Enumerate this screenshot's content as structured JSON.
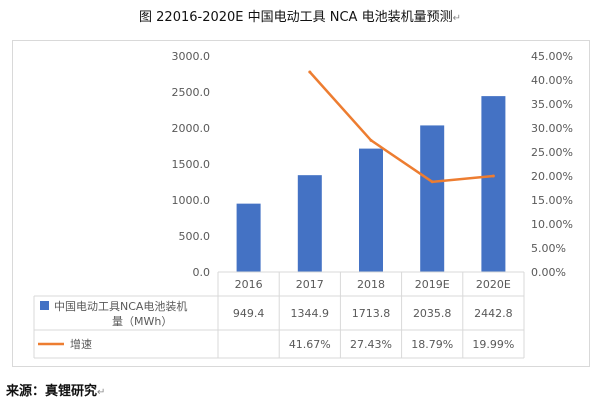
{
  "title": "图 22016-2020E  中国电动工具 NCA 电池装机量预测",
  "return_mark": "↵",
  "source": "来源：真锂研究",
  "colors": {
    "bar": "#4472C4",
    "line": "#ED7D31",
    "grid": "#d9d9d9",
    "text": "#595959"
  },
  "chart_data": {
    "type": "bar",
    "categories": [
      "2016",
      "2017",
      "2018",
      "2019E",
      "2020E"
    ],
    "series": [
      {
        "name": "中国电动工具NCA电池装机量（MWh）",
        "type": "bar",
        "axis": "left",
        "values": [
          949.4,
          1344.9,
          1713.8,
          2035.8,
          2442.8
        ],
        "labels": [
          "949.4",
          "1344.9",
          "1713.8",
          "2035.8",
          "2442.8"
        ]
      },
      {
        "name": "增速",
        "type": "line",
        "axis": "right",
        "values": [
          null,
          41.67,
          27.43,
          18.79,
          19.99
        ],
        "labels": [
          "",
          "41.67%",
          "27.43%",
          "18.79%",
          "19.99%"
        ]
      }
    ],
    "ylim": [
      0,
      3000
    ],
    "yticks": [
      "0.0",
      "500.0",
      "1000.0",
      "1500.0",
      "2000.0",
      "2500.0",
      "3000.0"
    ],
    "y2lim": [
      0,
      45
    ],
    "y2ticks": [
      "0.00%",
      "5.00%",
      "10.00%",
      "15.00%",
      "20.00%",
      "25.00%",
      "30.00%",
      "35.00%",
      "40.00%",
      "45.00%"
    ],
    "grid": false,
    "legend": "data table"
  }
}
